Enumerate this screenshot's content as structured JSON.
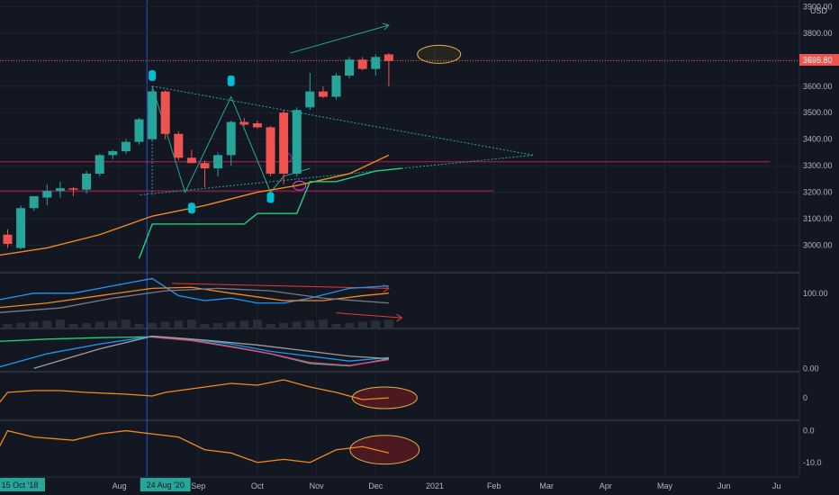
{
  "currency": "USD",
  "last_price": "3695.80",
  "timeline": {
    "date_labels": [
      {
        "text": "15 Oct '18",
        "week": -5,
        "highlight": true
      },
      {
        "text": "Aug",
        "week": 8.5,
        "highlight": false
      },
      {
        "text": "24 Aug '20",
        "week": 12,
        "highlight": true
      },
      {
        "text": "Sep",
        "week": 14.5,
        "highlight": false
      },
      {
        "text": "Oct",
        "week": 19,
        "highlight": false
      },
      {
        "text": "Nov",
        "week": 23.5,
        "highlight": false
      },
      {
        "text": "Dec",
        "week": 28,
        "highlight": false
      },
      {
        "text": "2021",
        "week": 32.5,
        "highlight": false
      },
      {
        "text": "Feb",
        "week": 37,
        "highlight": false
      },
      {
        "text": "Mar",
        "week": 41,
        "highlight": false
      },
      {
        "text": "Apr",
        "week": 45.5,
        "highlight": false
      },
      {
        "text": "May",
        "week": 50,
        "highlight": false
      },
      {
        "text": "Jun",
        "week": 54.5,
        "highlight": false
      },
      {
        "text": "Ju",
        "week": 58.5,
        "highlight": false
      }
    ]
  },
  "chart_data": [
    {
      "type": "candlestick",
      "name": "price",
      "currency": "USD",
      "y_ticks": [
        "3900.00",
        "3800.00",
        "3700.00",
        "3600.00",
        "3500.00",
        "3400.00",
        "3300.00",
        "3200.00",
        "3100.00",
        "3000.00"
      ],
      "ylim": [
        2900,
        3925
      ],
      "candles": [
        {
          "week": 0,
          "o": 3040,
          "h": 3060,
          "l": 2990,
          "c": 3005
        },
        {
          "week": 1,
          "o": 2990,
          "h": 3150,
          "l": 2985,
          "c": 3140
        },
        {
          "week": 2,
          "o": 3140,
          "h": 3180,
          "l": 3130,
          "c": 3185
        },
        {
          "week": 3,
          "o": 3180,
          "h": 3230,
          "l": 3150,
          "c": 3205
        },
        {
          "week": 4,
          "o": 3205,
          "h": 3240,
          "l": 3180,
          "c": 3215
        },
        {
          "week": 5,
          "o": 3215,
          "h": 3220,
          "l": 3185,
          "c": 3210
        },
        {
          "week": 6,
          "o": 3210,
          "h": 3280,
          "l": 3195,
          "c": 3270
        },
        {
          "week": 7,
          "o": 3270,
          "h": 3345,
          "l": 3260,
          "c": 3340
        },
        {
          "week": 8,
          "o": 3340,
          "h": 3360,
          "l": 3325,
          "c": 3355
        },
        {
          "week": 9,
          "o": 3355,
          "h": 3400,
          "l": 3345,
          "c": 3390
        },
        {
          "week": 10,
          "o": 3390,
          "h": 3480,
          "l": 3380,
          "c": 3475
        },
        {
          "week": 11,
          "o": 3400,
          "h": 3590,
          "l": 3395,
          "c": 3580
        },
        {
          "week": 12,
          "o": 3580,
          "h": 3585,
          "l": 3400,
          "c": 3420
        },
        {
          "week": 13,
          "o": 3420,
          "h": 3430,
          "l": 3320,
          "c": 3330
        },
        {
          "week": 14,
          "o": 3330,
          "h": 3360,
          "l": 3310,
          "c": 3310
        },
        {
          "week": 15,
          "o": 3310,
          "h": 3320,
          "l": 3220,
          "c": 3290
        },
        {
          "week": 16,
          "o": 3290,
          "h": 3350,
          "l": 3260,
          "c": 3340
        },
        {
          "week": 17,
          "o": 3340,
          "h": 3470,
          "l": 3300,
          "c": 3465
        },
        {
          "week": 18,
          "o": 3465,
          "h": 3480,
          "l": 3450,
          "c": 3455
        },
        {
          "week": 19,
          "o": 3460,
          "h": 3470,
          "l": 3440,
          "c": 3445
        },
        {
          "week": 20,
          "o": 3445,
          "h": 3450,
          "l": 3260,
          "c": 3270
        },
        {
          "week": 21,
          "o": 3500,
          "h": 3510,
          "l": 3230,
          "c": 3270
        },
        {
          "week": 22,
          "o": 3270,
          "h": 3520,
          "l": 3260,
          "c": 3510
        },
        {
          "week": 23,
          "o": 3520,
          "h": 3650,
          "l": 3510,
          "c": 3580
        },
        {
          "week": 24,
          "o": 3580,
          "h": 3600,
          "l": 3555,
          "c": 3560
        },
        {
          "week": 25,
          "o": 3560,
          "h": 3650,
          "l": 3550,
          "c": 3640
        },
        {
          "week": 26,
          "o": 3640,
          "h": 3710,
          "l": 3630,
          "c": 3700
        },
        {
          "week": 27,
          "o": 3700,
          "h": 3710,
          "l": 3660,
          "c": 3665
        },
        {
          "week": 28,
          "o": 3665,
          "h": 3720,
          "l": 3640,
          "c": 3710
        },
        {
          "week": 29,
          "o": 3720,
          "h": 3725,
          "l": 3600,
          "c": 3695
        }
      ],
      "moving_averages": [
        {
          "color": "#f28a1e",
          "points": [
            [
              -1,
              2960
            ],
            [
              3,
              2990
            ],
            [
              7,
              3040
            ],
            [
              11,
              3110
            ],
            [
              15,
              3150
            ],
            [
              19,
              3200
            ],
            [
              22,
              3225
            ],
            [
              26,
              3270
            ],
            [
              29,
              3340
            ]
          ]
        },
        {
          "color": "#26d07c",
          "points": [
            [
              10,
              2950
            ],
            [
              11,
              3080
            ],
            [
              14,
              3080
            ],
            [
              18,
              3080
            ],
            [
              19,
              3120
            ],
            [
              22,
              3120
            ],
            [
              23,
              3240
            ],
            [
              25,
              3240
            ],
            [
              28,
              3280
            ],
            [
              30,
              3290
            ]
          ]
        }
      ],
      "horizontal_lines": [
        {
          "value": 3315,
          "from_week": -1,
          "to_week": 58,
          "color": "#c2185b"
        },
        {
          "value": 3205,
          "from_week": -1,
          "to_week": 37,
          "color": "#c2185b"
        }
      ],
      "triangle": {
        "color": "#26a69a",
        "points": [
          [
            11,
            3600
          ],
          [
            13.5,
            3200
          ],
          [
            17,
            3560
          ],
          [
            20,
            3200
          ],
          [
            21,
            3260
          ],
          [
            23,
            3290
          ]
        ],
        "apex": [
          40,
          3340
        ]
      },
      "trend_arrow": {
        "from": [
          21.5,
          3725
        ],
        "to": [
          29,
          3830
        ],
        "color": "#26a69a"
      },
      "target_ellipse": {
        "week": 32,
        "value": 3720,
        "rx": 14,
        "ry": 10
      },
      "badges": [
        {
          "week": 11,
          "value": 3640,
          "color": "#00bcd4"
        },
        {
          "week": 14,
          "value": 3140,
          "color": "#00bcd4"
        },
        {
          "week": 17,
          "value": 3620,
          "color": "#00bcd4"
        },
        {
          "week": 20,
          "value": 3180,
          "color": "#00bcd4"
        }
      ]
    },
    {
      "type": "line",
      "name": "momentum",
      "y_ticks": [
        "100.00"
      ],
      "series": [
        {
          "color": "#2196f3",
          "points": [
            [
              -1,
              85
            ],
            [
              2,
              100
            ],
            [
              5,
              100
            ],
            [
              7,
              110
            ],
            [
              9,
              120
            ],
            [
              11,
              130
            ],
            [
              13,
              95
            ],
            [
              15,
              85
            ],
            [
              17,
              90
            ],
            [
              19,
              80
            ],
            [
              21,
              80
            ],
            [
              23,
              90
            ],
            [
              26,
              110
            ],
            [
              29,
              115
            ]
          ]
        },
        {
          "color": "#f28a1e",
          "points": [
            [
              -1,
              70
            ],
            [
              3,
              80
            ],
            [
              7,
              95
            ],
            [
              11,
              110
            ],
            [
              14,
              112
            ],
            [
              17,
              100
            ],
            [
              21,
              85
            ],
            [
              24,
              85
            ],
            [
              27,
              95
            ],
            [
              29,
              100
            ]
          ]
        },
        {
          "color": "#787b86",
          "points": [
            [
              -1,
              60
            ],
            [
              4,
              70
            ],
            [
              8,
              90
            ],
            [
              12,
              105
            ],
            [
              16,
              110
            ],
            [
              20,
              105
            ],
            [
              24,
              90
            ],
            [
              29,
              80
            ]
          ]
        }
      ],
      "divergence_arrows": [
        {
          "from": [
            12.5,
            120
          ],
          "to": [
            29,
            110
          ],
          "color": "#e53935"
        },
        {
          "from": [
            25,
            60
          ],
          "to": [
            30,
            50
          ],
          "color": "#e53935"
        }
      ]
    },
    {
      "type": "line",
      "name": "oscillator",
      "y_ticks": [
        "0.00"
      ],
      "series": [
        {
          "color": "#26d07c",
          "points": [
            [
              -1,
              55
            ],
            [
              3,
              60
            ],
            [
              7,
              63
            ],
            [
              11,
              65
            ],
            [
              14,
              58
            ],
            [
              17,
              45
            ],
            [
              20,
              30
            ],
            [
              23,
              10
            ],
            [
              26,
              5
            ],
            [
              29,
              20
            ]
          ]
        },
        {
          "color": "#ec407a",
          "points": [
            [
              11,
              64
            ],
            [
              14,
              57
            ],
            [
              17,
              44
            ],
            [
              20,
              30
            ],
            [
              23,
              12
            ],
            [
              26,
              6
            ],
            [
              29,
              18
            ]
          ]
        },
        {
          "color": "#2196f3",
          "points": [
            [
              -1,
              0
            ],
            [
              3,
              30
            ],
            [
              7,
              50
            ],
            [
              11,
              66
            ],
            [
              14,
              60
            ],
            [
              17,
              50
            ],
            [
              20,
              35
            ],
            [
              23,
              25
            ],
            [
              26,
              15
            ],
            [
              29,
              22
            ]
          ]
        },
        {
          "color": "#9e9e9e",
          "points": [
            [
              2,
              0
            ],
            [
              7,
              40
            ],
            [
              11,
              66
            ],
            [
              15,
              58
            ],
            [
              19,
              48
            ],
            [
              23,
              35
            ],
            [
              26,
              25
            ],
            [
              29,
              20
            ]
          ]
        }
      ]
    },
    {
      "type": "line",
      "name": "indicator-3",
      "y_ticks": [
        "0"
      ],
      "series": [
        {
          "color": "#f28a1e",
          "points": [
            [
              -1,
              -6
            ],
            [
              0,
              3
            ],
            [
              2,
              4
            ],
            [
              4,
              4
            ],
            [
              6,
              3
            ],
            [
              9,
              2
            ],
            [
              11,
              1
            ],
            [
              12,
              3
            ],
            [
              14,
              5
            ],
            [
              17,
              8
            ],
            [
              19,
              7
            ],
            [
              21,
              10
            ],
            [
              23,
              6
            ],
            [
              25,
              3
            ],
            [
              27,
              -1
            ],
            [
              29,
              0
            ]
          ]
        }
      ],
      "target_ellipse": {
        "week": 28,
        "value": 0,
        "rx": 45,
        "ry": 12
      }
    },
    {
      "type": "line",
      "name": "indicator-4",
      "y_ticks": [
        "0.0",
        "-10.0"
      ],
      "series": [
        {
          "color": "#f28a1e",
          "points": [
            [
              -1,
              -8
            ],
            [
              0,
              0
            ],
            [
              2,
              -2
            ],
            [
              5,
              -3
            ],
            [
              7,
              -1
            ],
            [
              9,
              0
            ],
            [
              11,
              -1
            ],
            [
              13,
              -2
            ],
            [
              15,
              -6
            ],
            [
              17,
              -7
            ],
            [
              19,
              -10
            ],
            [
              21,
              -9
            ],
            [
              23,
              -10
            ],
            [
              25,
              -6
            ],
            [
              27,
              -5
            ],
            [
              29,
              -7
            ]
          ]
        }
      ],
      "target_ellipse": {
        "week": 28,
        "value": -6,
        "rx": 48,
        "ry": 16
      }
    }
  ]
}
